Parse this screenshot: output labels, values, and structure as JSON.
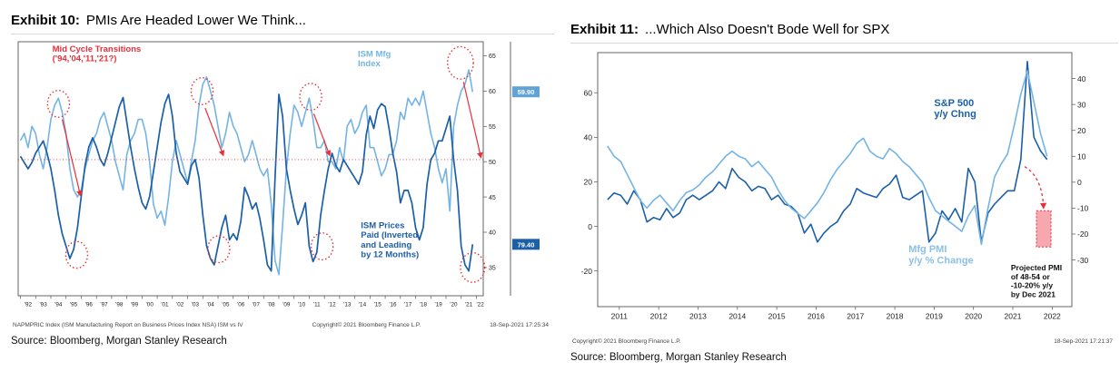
{
  "colors": {
    "light_blue": "#74b4e4",
    "dark_blue": "#1b5fa8",
    "red": "#e8303a"
  },
  "exhibits": [
    {
      "title_prefix": "Exhibit 10:",
      "title_rest": "PMIs Are Headed Lower We Think...",
      "footer_left": "NAPMPRIC Index (ISM Manufacturing Report on Business Prices Index NSA) ISM vs IV",
      "footer_center": "Copyright© 2021 Bloomberg Finance L.P.",
      "footer_right": "18-Sep-2021 17:25:34",
      "source": "Source: Bloomberg, Morgan Stanley Research"
    },
    {
      "title_prefix": "Exhibit 11:",
      "title_rest": "...Which Also Doesn't Bode Well for SPX",
      "footer_left": "Copyright© 2021 Bloomberg Finance L.P.",
      "footer_right": "18-Sep-2021 17:21:37",
      "source": "Source: Bloomberg, Morgan Stanley Research"
    }
  ],
  "chart_data": [
    {
      "id": "chart0",
      "type": "line",
      "title": "PMIs Are Headed Lower We Think...",
      "x_range": [
        1991.85,
        2022.45
      ],
      "x_tick_start": 1992,
      "x_label_mid": true,
      "x_label_size": 6.3,
      "y_label_size": 7,
      "x_tick_labels": [
        "'92",
        "'93",
        "'94",
        "'95",
        "'96",
        "'97",
        "'98",
        "'99",
        "'00",
        "'01",
        "'02",
        "'03",
        "'04",
        "'05",
        "'06",
        "'07",
        "'08",
        "'09",
        "'10",
        "'11",
        "'12",
        "'13",
        "'14",
        "'15",
        "'16",
        "'17",
        "'18",
        "'19",
        "'20",
        "'21",
        "'22"
      ],
      "scales": {
        "ism": {
          "min": 31,
          "max": 67,
          "inverted": false
        },
        "prices": {
          "min": 14,
          "max": 96,
          "inverted": true
        }
      },
      "default_scale": "ism",
      "axes": [
        {
          "side": "right",
          "scale": "ism",
          "ticks": [
            65,
            60,
            55,
            50,
            45,
            40,
            35
          ]
        }
      ],
      "value_boxes": [
        {
          "text": "59.90",
          "value": 59.9,
          "scale": "ism",
          "color": "#5fa3d8"
        },
        {
          "text": "79.40",
          "value": 79.4,
          "scale": "prices",
          "color": "#1b5fa8"
        }
      ],
      "series": [
        {
          "name": "ISM Mfg Index",
          "color": "#74b4e4",
          "width": 1.6,
          "scale": "ism",
          "x_start": 1992.0,
          "x_step": 0.25,
          "values": [
            53,
            54,
            52,
            55,
            54,
            51,
            49,
            52,
            56,
            58,
            59,
            57,
            54,
            49,
            46,
            45,
            46,
            49,
            51,
            53,
            54,
            56,
            57,
            55,
            53,
            50,
            48,
            46,
            51,
            53,
            54,
            56,
            56,
            54,
            50,
            44,
            42,
            43,
            41,
            45,
            50,
            53,
            51,
            49,
            47,
            50,
            53,
            58,
            61,
            62,
            60,
            58,
            55,
            52,
            54,
            57,
            55,
            54,
            52,
            50,
            51,
            53,
            51,
            49,
            48,
            49,
            44,
            36,
            34,
            41,
            49,
            54,
            58,
            57,
            55,
            57,
            59,
            56,
            52,
            52,
            53,
            50,
            50,
            49,
            52,
            50,
            55,
            56,
            54,
            55,
            57,
            58,
            52,
            52,
            50,
            48,
            49,
            51,
            51,
            53,
            57,
            56,
            59,
            58,
            59,
            58,
            60,
            57,
            54,
            52,
            49,
            47,
            49,
            43,
            55,
            58,
            60,
            61,
            63,
            59.9
          ]
        },
        {
          "name": "ISM Prices Paid (Inverted and Leading by 12 Months)",
          "color": "#1b5fa8",
          "width": 1.7,
          "scale": "prices",
          "x_start": 1992.0,
          "x_step": 0.25,
          "values": [
            51,
            53,
            55,
            53,
            50,
            48,
            46,
            50,
            55,
            62,
            70,
            76,
            80,
            84,
            81,
            74,
            64,
            54,
            48,
            45,
            48,
            52,
            54,
            50,
            45,
            40,
            35,
            32,
            40,
            48,
            55,
            61,
            66,
            68,
            64,
            56,
            48,
            40,
            34,
            31,
            38,
            50,
            56,
            58,
            60,
            54,
            52,
            58,
            70,
            80,
            84,
            86,
            80,
            74,
            70,
            78,
            76,
            78,
            72,
            61,
            64,
            68,
            66,
            71,
            78,
            86,
            88,
            58,
            31,
            38,
            55,
            62,
            68,
            73,
            70,
            66,
            80,
            85,
            82,
            70,
            62,
            55,
            50,
            54,
            56,
            52,
            54,
            56,
            58,
            60,
            56,
            44,
            38,
            42,
            36,
            34,
            35,
            42,
            50,
            56,
            66,
            62,
            62,
            66,
            74,
            78,
            74,
            60,
            52,
            50,
            46,
            46,
            42,
            38,
            52,
            62,
            80,
            86,
            88,
            79.4
          ]
        }
      ],
      "annotations": [
        {
          "type": "hline",
          "y": 50.3,
          "scale": "ism",
          "color": "#e8303a",
          "dash": "1 2.5",
          "width": 0.9
        },
        {
          "type": "ellipse",
          "cx": 1994.5,
          "cy": 58.2,
          "rx": 0.72,
          "ry": 1.9,
          "scale": "ism"
        },
        {
          "type": "ellipse",
          "cx": 1995.7,
          "cy": 36.8,
          "rx": 0.72,
          "ry": 1.9,
          "scale": "ism"
        },
        {
          "type": "ellipse",
          "cx": 2003.95,
          "cy": 60.0,
          "rx": 0.72,
          "ry": 1.9,
          "scale": "ism"
        },
        {
          "type": "ellipse",
          "cx": 2005.05,
          "cy": 37.6,
          "rx": 0.72,
          "ry": 1.9,
          "scale": "ism"
        },
        {
          "type": "ellipse",
          "cx": 2011.1,
          "cy": 59.2,
          "rx": 0.72,
          "ry": 1.9,
          "scale": "ism"
        },
        {
          "type": "ellipse",
          "cx": 2011.85,
          "cy": 38.0,
          "rx": 0.72,
          "ry": 1.9,
          "scale": "ism"
        },
        {
          "type": "ellipse",
          "cx": 2020.95,
          "cy": 64.0,
          "rx": 0.85,
          "ry": 2.3,
          "scale": "ism"
        },
        {
          "type": "ellipse",
          "cx": 2021.75,
          "cy": 35.0,
          "rx": 0.8,
          "ry": 2.1,
          "scale": "ism"
        },
        {
          "type": "arrow",
          "x1": 1994.75,
          "y1": 56.0,
          "x2": 1995.95,
          "y2": 45.2,
          "scale": "ism"
        },
        {
          "type": "arrow",
          "x1": 2004.15,
          "y1": 57.6,
          "x2": 2005.35,
          "y2": 50.9,
          "scale": "ism"
        },
        {
          "type": "arrow",
          "x1": 2011.3,
          "y1": 56.8,
          "x2": 2012.35,
          "y2": 50.9,
          "scale": "ism"
        },
        {
          "type": "arrow",
          "x1": 2021.15,
          "y1": 61.3,
          "x2": 2022.3,
          "y2": 50.6,
          "scale": "ism"
        },
        {
          "type": "text",
          "x": 1994.1,
          "y": 65.6,
          "scale": "ism",
          "anchor": "start",
          "color": "#e8303a",
          "size": 9.5,
          "weight": "bold",
          "lines": [
            "Mid Cycle Transitions",
            "('94,'04,'11,'21?)"
          ]
        },
        {
          "type": "text",
          "x": 2014.2,
          "y": 64.9,
          "scale": "ism",
          "anchor": "start",
          "color": "#74b4e4",
          "size": 9.5,
          "weight": "bold",
          "lines": [
            "ISM Mfg",
            "Index"
          ]
        },
        {
          "type": "text",
          "x": 2014.4,
          "y": 40.6,
          "scale": "ism",
          "anchor": "start",
          "color": "#1b5fa8",
          "size": 9.5,
          "weight": "bold",
          "lines": [
            "ISM Prices",
            "Paid (Inverted",
            "and Leading",
            "by 12 Months)"
          ]
        }
      ]
    },
    {
      "id": "chart1",
      "type": "line",
      "title": "...Which Also Doesn't Bode Well for SPX",
      "x_range": [
        2010.45,
        2022.5
      ],
      "x_tick_start": 2011,
      "x_label_mid": false,
      "x_label_size": 8.5,
      "y_label_size": 8.5,
      "x_tick_labels": [
        "2011",
        "2012",
        "2013",
        "2014",
        "2015",
        "2016",
        "2017",
        "2018",
        "2019",
        "2020",
        "2021",
        "2022"
      ],
      "scales": {
        "left": {
          "min": -36,
          "max": 78,
          "inverted": false
        },
        "right": {
          "min": -48,
          "max": 50,
          "inverted": false
        }
      },
      "default_scale": "right",
      "axes": [
        {
          "side": "left",
          "scale": "left",
          "ticks": [
            60,
            40,
            20,
            0,
            -20
          ]
        },
        {
          "side": "right",
          "scale": "right",
          "ticks": [
            40,
            30,
            20,
            10,
            0,
            -10,
            -20,
            -30
          ]
        }
      ],
      "series": [
        {
          "name": "S&P 500 y/y Chng",
          "color": "#1b5fa8",
          "width": 1.6,
          "scale": "left",
          "x_start": 2010.7,
          "x_step": 0.1667,
          "values": [
            12,
            15,
            14,
            10,
            16,
            12,
            2,
            4,
            3,
            8,
            4,
            6,
            12,
            14,
            12,
            14,
            16,
            20,
            17,
            26,
            22,
            20,
            16,
            18,
            17,
            12,
            14,
            10,
            9,
            6,
            -3,
            1,
            -7,
            -3,
            0,
            2,
            7,
            10,
            17,
            15,
            14,
            13,
            17,
            19,
            23,
            13,
            12,
            14,
            16,
            -7,
            -3,
            7,
            3,
            8,
            2,
            26,
            20,
            -7,
            6,
            10,
            13,
            16,
            16,
            30,
            74,
            40,
            34,
            30
          ]
        },
        {
          "name": "Mfg PMI y/y % Change",
          "color": "#74b4e4",
          "width": 1.6,
          "scale": "right",
          "x_start": 2010.7,
          "x_step": 0.1667,
          "values": [
            14,
            10,
            8,
            3,
            -2,
            -7,
            -10,
            -7,
            -5,
            -8,
            -11,
            -7,
            -4,
            -3,
            -1,
            2,
            4,
            7,
            10,
            12,
            10,
            9,
            6,
            8,
            5,
            2,
            -3,
            -7,
            -10,
            -12,
            -14,
            -11,
            -8,
            -4,
            1,
            5,
            8,
            11,
            15,
            17,
            12,
            10,
            9,
            13,
            11,
            8,
            6,
            3,
            0,
            -6,
            -11,
            -13,
            -15,
            -17,
            -19,
            -13,
            -9,
            -24,
            -10,
            2,
            7,
            11,
            22,
            34,
            43,
            31,
            19,
            10
          ]
        }
      ],
      "annotations": [
        {
          "type": "text",
          "x": 2019.0,
          "y": 54,
          "scale": "left",
          "anchor": "start",
          "color": "#1b5fa8",
          "size": 11,
          "weight": "bold",
          "lines": [
            "S&P 500",
            "y/y Chng"
          ]
        },
        {
          "type": "text",
          "x": 2018.35,
          "y": -27,
          "scale": "right",
          "anchor": "start",
          "color": "#8bc0e8",
          "size": 11,
          "weight": "bold",
          "lines": [
            "Mfg PMI",
            "y/y % Change"
          ]
        },
        {
          "type": "rect",
          "x1": 2021.6,
          "x2": 2021.97,
          "y1": -11,
          "y2": -25,
          "scale": "right",
          "fill": "rgba(242,110,120,0.6)",
          "stroke": "#e8303a",
          "dash": "2 2"
        },
        {
          "type": "curve",
          "x1": 2021.3,
          "y1": 6,
          "cx": 2021.75,
          "cy": 2,
          "x2": 2021.78,
          "y2": -10,
          "scale": "right",
          "color": "#e8303a",
          "dash": "3 3",
          "width": 1.3,
          "arrow": true
        },
        {
          "type": "text",
          "x": 2020.95,
          "y": -34,
          "scale": "right",
          "anchor": "start",
          "color": "#111111",
          "size": 8.5,
          "weight": "bold",
          "lines": [
            "Projected PMI",
            "of 48-54 or",
            "-10-20% y/y",
            "by Dec 2021"
          ]
        }
      ]
    }
  ]
}
